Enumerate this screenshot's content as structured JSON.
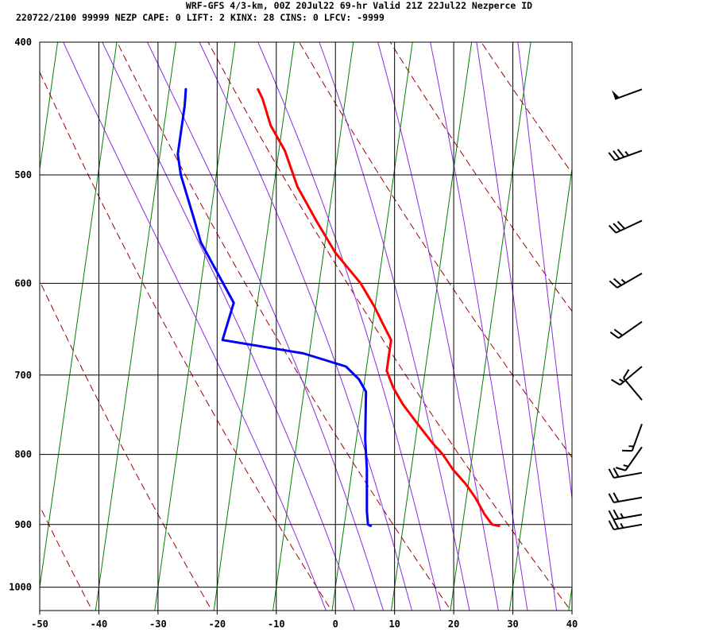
{
  "header": {
    "line1": "WRF-GFS 4/3-km, 00Z 20Jul22 69-hr Valid 21Z 22Jul22 Nezperce ID",
    "line2": "220722/2100 99999  NEZP    CAPE:     0 LIFT:     2 KINX:    28 CINS:     0 LFCV: -9999"
  },
  "chart_data": {
    "type": "line",
    "title": "WRF-GFS 4/3-km, 00Z 20Jul22 69-hr Valid 21Z 22Jul22 Nezperce ID",
    "xlabel": "",
    "ylabel": "",
    "xlim": [
      -50,
      40
    ],
    "ylim": [
      1040,
      400
    ],
    "y_scale": "log",
    "grid": true,
    "x_ticks": [
      -50,
      -40,
      -30,
      -20,
      -10,
      0,
      10,
      20,
      30,
      40
    ],
    "y_ticks": [
      400,
      500,
      600,
      700,
      800,
      900,
      1000
    ],
    "series": [
      {
        "color": "#ff0000",
        "points": [
          [
            26.2,
            902
          ],
          [
            25,
            900
          ],
          [
            23.5,
            885
          ],
          [
            21.5,
            860
          ],
          [
            19.5,
            840
          ],
          [
            17,
            820
          ],
          [
            15,
            800
          ],
          [
            13,
            785
          ],
          [
            10,
            760
          ],
          [
            7,
            735
          ],
          [
            5,
            715
          ],
          [
            3.5,
            695
          ],
          [
            3.5,
            660
          ],
          [
            1.5,
            640
          ],
          [
            0,
            625
          ],
          [
            -3,
            600
          ],
          [
            -8,
            570
          ],
          [
            -12,
            540
          ],
          [
            -16,
            510
          ],
          [
            -19,
            480
          ],
          [
            -22,
            460
          ],
          [
            -24,
            440
          ],
          [
            -25,
            433
          ]
        ]
      },
      {
        "color": "#0000ff",
        "points": [
          [
            4.5,
            902
          ],
          [
            4,
            900
          ],
          [
            3.5,
            880
          ],
          [
            2.5,
            820
          ],
          [
            1.5,
            780
          ],
          [
            0.5,
            720
          ],
          [
            -1,
            705
          ],
          [
            -3.5,
            690
          ],
          [
            -11,
            675
          ],
          [
            -25,
            660
          ],
          [
            -24,
            620
          ],
          [
            -31,
            560
          ],
          [
            -33,
            535
          ],
          [
            -36,
            500
          ],
          [
            -37,
            483
          ],
          [
            -37,
            445
          ],
          [
            -37.2,
            433
          ]
        ]
      }
    ],
    "background_lines": {
      "isotherms_green_skewed": [
        -120,
        -110,
        -100,
        -90,
        -80,
        -70,
        -60,
        -50,
        -40,
        -30,
        -20,
        -10,
        0,
        10,
        20,
        30,
        40
      ],
      "dry_adiabats_theta_K": [
        230,
        250,
        270,
        290,
        310,
        330,
        350,
        370,
        390,
        410,
        430,
        450,
        470
      ],
      "moist_adiabats_thetaw_K": [
        270,
        275,
        280,
        285,
        290,
        295,
        300,
        305,
        310,
        315
      ],
      "mixing_ratios_gkg": [
        0.4,
        1,
        2,
        3,
        5,
        8,
        12,
        16,
        20,
        25,
        32
      ]
    },
    "wind_barbs": [
      {
        "p": 433,
        "dir": 250,
        "kt": 50
      },
      {
        "p": 480,
        "dir": 250,
        "kt": 35
      },
      {
        "p": 540,
        "dir": 245,
        "kt": 30
      },
      {
        "p": 590,
        "dir": 240,
        "kt": 25
      },
      {
        "p": 640,
        "dir": 235,
        "kt": 20
      },
      {
        "p": 690,
        "dir": 230,
        "kt": 15
      },
      {
        "p": 730,
        "dir": 320,
        "kt": 10
      },
      {
        "p": 760,
        "dir": 200,
        "kt": 15
      },
      {
        "p": 790,
        "dir": 215,
        "kt": 15
      },
      {
        "p": 825,
        "dir": 260,
        "kt": 20
      },
      {
        "p": 860,
        "dir": 260,
        "kt": 20
      },
      {
        "p": 885,
        "dir": 260,
        "kt": 25
      },
      {
        "p": 900,
        "dir": 260,
        "kt": 25
      }
    ]
  }
}
